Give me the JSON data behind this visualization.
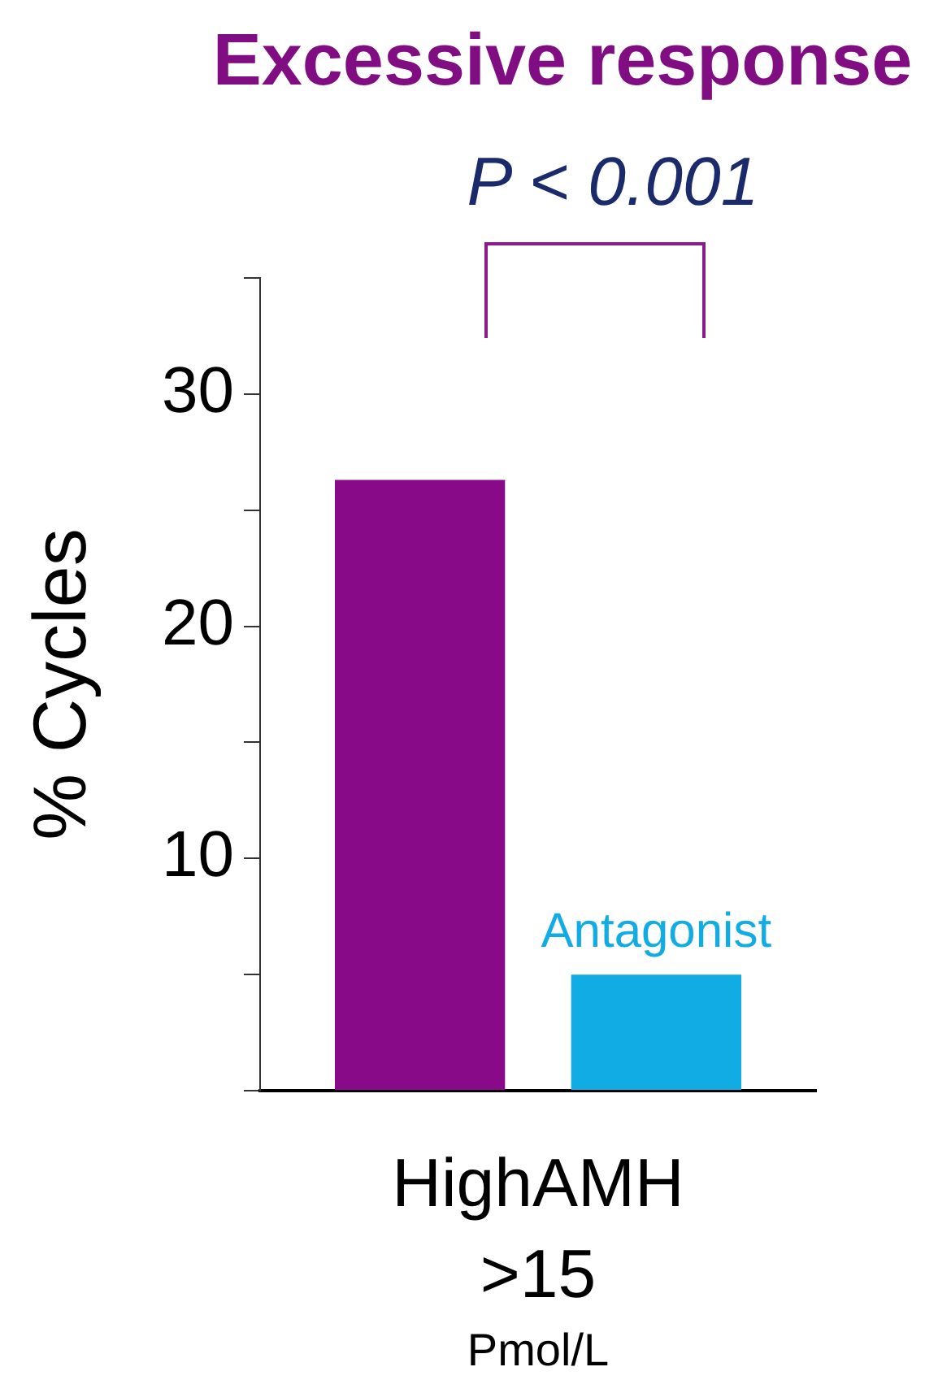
{
  "chart_data": {
    "type": "bar",
    "title": "Excessive response",
    "ylabel": "% Cycles",
    "categories": [
      "HighAMH\n>15\nPmol/L"
    ],
    "series": [
      {
        "color": "#880a88",
        "values": [
          26.3
        ]
      },
      {
        "name": "Antagonist",
        "color": "#12ace4",
        "values": [
          5
        ]
      }
    ],
    "ylim": [
      0,
      35
    ],
    "yticks": [
      {
        "value": 0,
        "label": null
      },
      {
        "value": 5,
        "label": null
      },
      10,
      {
        "value": 15,
        "label": null
      },
      20,
      {
        "value": 25,
        "label": null
      },
      30,
      {
        "value": 35,
        "label": null
      }
    ],
    "annotations": [
      "P < 0.001"
    ]
  }
}
